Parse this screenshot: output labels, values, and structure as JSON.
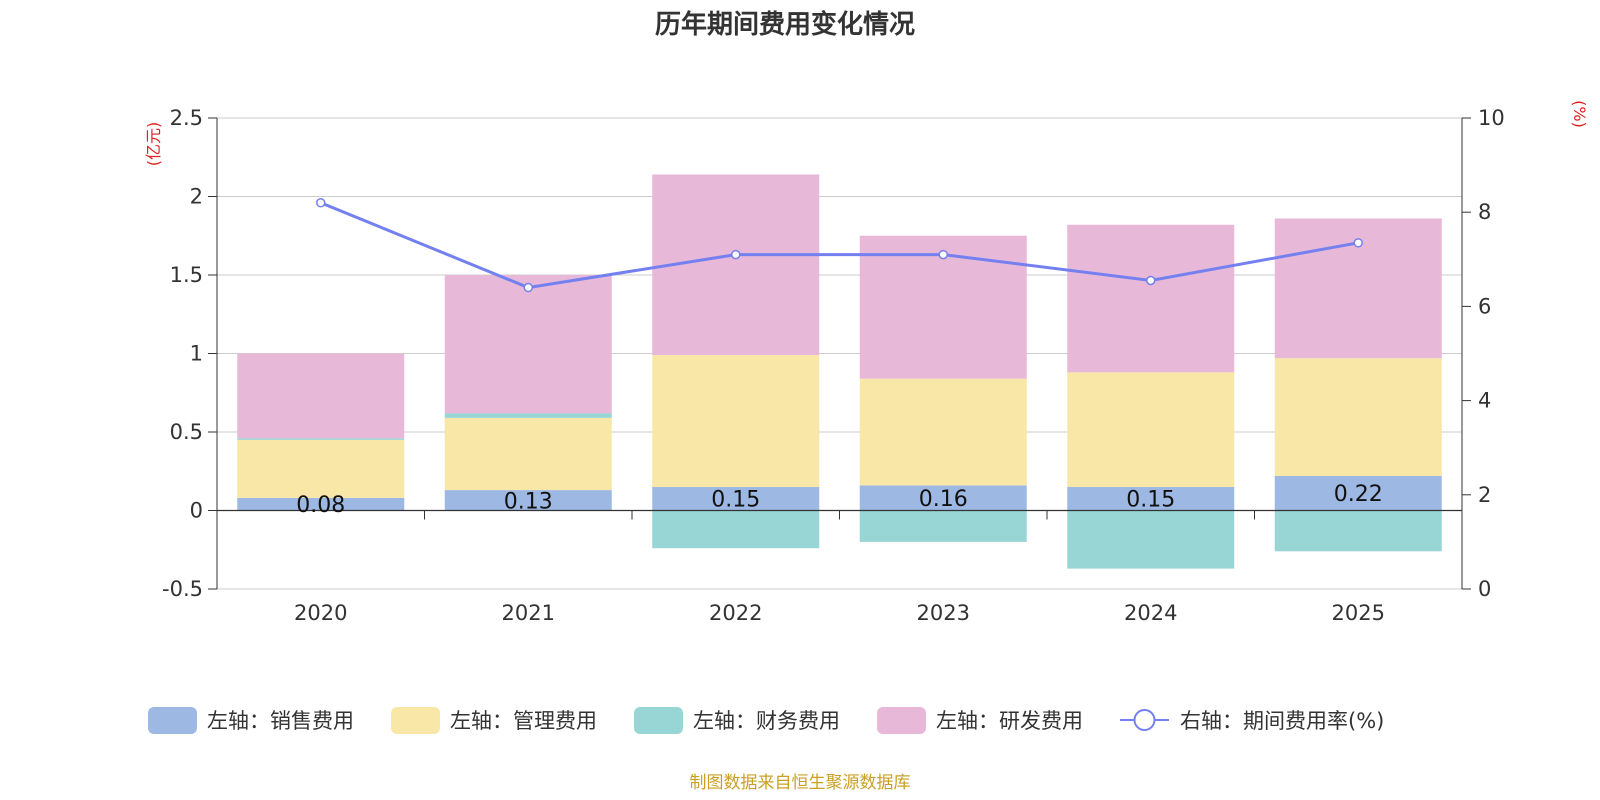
{
  "chart_data": {
    "type": "bar",
    "stacked": true,
    "title": "历年期间费用变化情况",
    "categories": [
      "2020",
      "2021",
      "2022",
      "2023",
      "2024",
      "2025"
    ],
    "left_axis": {
      "unit": "(亿元)",
      "ylim": [
        -0.5,
        2.5
      ],
      "ticks": [
        "-0.5",
        "0",
        "0.5",
        "1",
        "1.5",
        "2",
        "2.5"
      ]
    },
    "right_axis": {
      "unit": "(%)",
      "ylim": [
        0,
        10
      ],
      "ticks": [
        "0",
        "2",
        "4",
        "6",
        "8",
        "10"
      ]
    },
    "series": [
      {
        "name": "左轴：销售费用",
        "type": "bar",
        "axis": "left",
        "color": "#9db8e3",
        "values": [
          0.08,
          0.13,
          0.15,
          0.16,
          0.15,
          0.22
        ],
        "labels": [
          "0.08",
          "0.13",
          "0.15",
          "0.16",
          "0.15",
          "0.22"
        ]
      },
      {
        "name": "左轴：管理费用",
        "type": "bar",
        "axis": "left",
        "color": "#f8e7a7",
        "values": [
          0.37,
          0.46,
          0.84,
          0.68,
          0.73,
          0.75
        ]
      },
      {
        "name": "左轴：财务费用",
        "type": "bar",
        "axis": "left",
        "color": "#98d5d5",
        "values": [
          0.01,
          0.03,
          -0.24,
          -0.2,
          -0.37,
          -0.26
        ]
      },
      {
        "name": "左轴：研发费用",
        "type": "bar",
        "axis": "left",
        "color": "#e7b8d8",
        "values": [
          0.54,
          0.88,
          1.15,
          0.91,
          0.94,
          0.89
        ]
      },
      {
        "name": "右轴：期间费用率(%)",
        "type": "line",
        "axis": "right",
        "color": "#7480f0",
        "values": [
          8.2,
          6.4,
          7.1,
          7.1,
          6.55,
          7.35
        ]
      }
    ],
    "source": "制图数据来自恒生聚源数据库"
  }
}
